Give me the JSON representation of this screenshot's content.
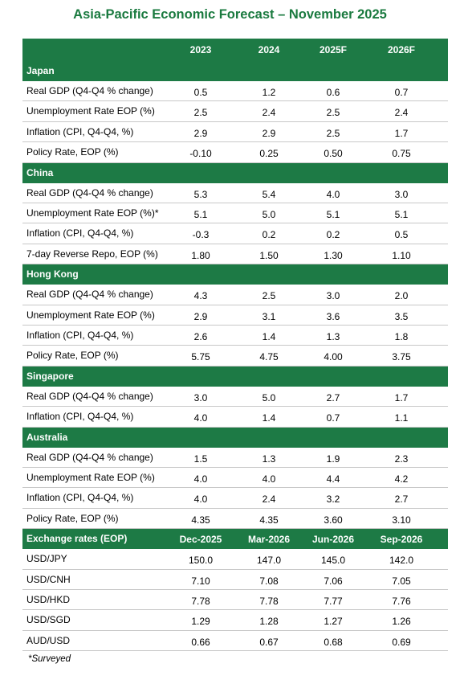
{
  "title": "Asia-Pacific Economic Forecast – November 2025",
  "table": {
    "header": [
      "2023",
      "2024",
      "2025F",
      "2026F"
    ],
    "sections": [
      {
        "name": "Japan",
        "rows": [
          [
            "Real GDP (Q4-Q4 % change)",
            "0.5",
            "1.2",
            "0.6",
            "0.7"
          ],
          [
            "Unemployment Rate EOP (%)",
            "2.5",
            "2.4",
            "2.5",
            "2.4"
          ],
          [
            "Inflation (CPI, Q4-Q4, %)",
            "2.9",
            "2.9",
            "2.5",
            "1.7"
          ],
          [
            "Policy Rate, EOP (%)",
            "-0.10",
            "0.25",
            "0.50",
            "0.75"
          ]
        ]
      },
      {
        "name": "China",
        "rows": [
          [
            "Real GDP (Q4-Q4 % change)",
            "5.3",
            "5.4",
            "4.0",
            "3.0"
          ],
          [
            "Unemployment Rate EOP (%)*",
            "5.1",
            "5.0",
            "5.1",
            "5.1"
          ],
          [
            "Inflation (CPI, Q4-Q4, %)",
            "-0.3",
            "0.2",
            "0.2",
            "0.5"
          ],
          [
            "7-day Reverse Repo, EOP (%)",
            "1.80",
            "1.50",
            "1.30",
            "1.10"
          ]
        ]
      },
      {
        "name": "Hong Kong",
        "rows": [
          [
            "Real GDP (Q4-Q4 % change)",
            "4.3",
            "2.5",
            "3.0",
            "2.0"
          ],
          [
            "Unemployment Rate EOP (%)",
            "2.9",
            "3.1",
            "3.6",
            "3.5"
          ],
          [
            "Inflation (CPI, Q4-Q4, %)",
            "2.6",
            "1.4",
            "1.3",
            "1.8"
          ],
          [
            "Policy Rate, EOP (%)",
            "5.75",
            "4.75",
            "4.00",
            "3.75"
          ]
        ]
      },
      {
        "name": "Singapore",
        "rows": [
          [
            "Real GDP (Q4-Q4 % change)",
            "3.0",
            "5.0",
            "2.7",
            "1.7"
          ],
          [
            "Inflation (CPI, Q4-Q4, %)",
            "4.0",
            "1.4",
            "0.7",
            "1.1"
          ]
        ]
      },
      {
        "name": "Australia",
        "rows": [
          [
            "Real GDP (Q4-Q4 % change)",
            "1.5",
            "1.3",
            "1.9",
            "2.3"
          ],
          [
            "Unemployment Rate EOP (%)",
            "4.0",
            "4.0",
            "4.4",
            "4.2"
          ],
          [
            "Inflation (CPI, Q4-Q4, %)",
            "4.0",
            "2.4",
            "3.2",
            "2.7"
          ],
          [
            "Policy Rate, EOP (%)",
            "4.35",
            "4.35",
            "3.60",
            "3.10"
          ]
        ]
      },
      {
        "name": "Exchange rates (EOP)",
        "columns": [
          "Dec-2025",
          "Mar-2026",
          "Jun-2026",
          "Sep-2026"
        ],
        "rows": [
          [
            "USD/JPY",
            "150.0",
            "147.0",
            "145.0",
            "142.0"
          ],
          [
            "USD/CNH",
            "7.10",
            "7.08",
            "7.06",
            "7.05"
          ],
          [
            "USD/HKD",
            "7.78",
            "7.78",
            "7.77",
            "7.76"
          ],
          [
            "USD/SGD",
            "1.29",
            "1.28",
            "1.27",
            "1.26"
          ],
          [
            "AUD/USD",
            "0.66",
            "0.67",
            "0.68",
            "0.69"
          ]
        ]
      }
    ]
  },
  "footnote": "*Surveyed"
}
